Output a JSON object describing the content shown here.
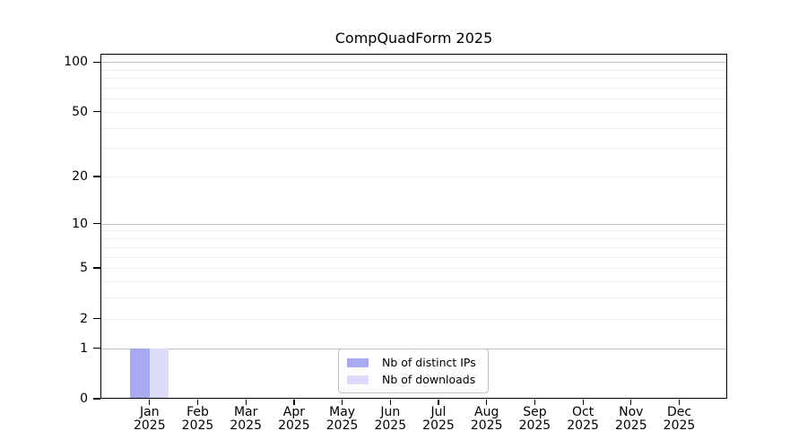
{
  "chart_data": {
    "type": "bar",
    "title": "CompQuadForm 2025",
    "xlabel": "",
    "ylabel": "",
    "yscale": "log1p",
    "ylim": [
      0,
      112
    ],
    "yticks": [
      0,
      1,
      2,
      5,
      10,
      20,
      50,
      100
    ],
    "categories": [
      "Jan 2025",
      "Feb 2025",
      "Mar 2025",
      "Apr 2025",
      "May 2025",
      "Jun 2025",
      "Jul 2025",
      "Aug 2025",
      "Sep 2025",
      "Oct 2025",
      "Nov 2025",
      "Dec 2025"
    ],
    "series": [
      {
        "name": "Nb of distinct IPs",
        "color": "#a9a9f2",
        "values": [
          1,
          0,
          0,
          0,
          0,
          0,
          0,
          0,
          0,
          0,
          0,
          0
        ]
      },
      {
        "name": "Nb of downloads",
        "color": "#dcdcf8",
        "values": [
          1,
          0,
          0,
          0,
          0,
          0,
          0,
          0,
          0,
          0,
          0,
          0
        ]
      }
    ],
    "grid": {
      "on": true,
      "major_lines": [
        1,
        10,
        100
      ],
      "minor_lines": [
        2,
        3,
        4,
        5,
        6,
        7,
        8,
        9,
        20,
        30,
        40,
        50,
        60,
        70,
        80,
        90
      ],
      "major_color": "#c0c0c0",
      "minor_color": "#ededed"
    },
    "legend_position": "bottom-center"
  }
}
